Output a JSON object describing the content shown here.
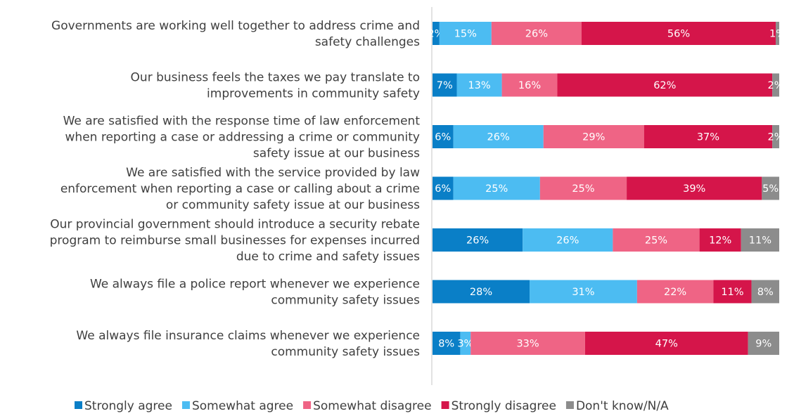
{
  "chart_data": {
    "type": "bar",
    "orientation": "horizontal",
    "stacked": true,
    "normalized": true,
    "title": "",
    "xlabel": "",
    "ylabel": "",
    "xlim": [
      0,
      100
    ],
    "grid": false,
    "legend_position": "bottom",
    "categories": [
      "Governments are working well together to address crime and safety challenges",
      "Our business feels the taxes we pay translate to improvements in community safety",
      "We are satisfied with the response time of law enforcement when reporting a case or addressing a crime or community safety issue at our business",
      "We are satisfied with the service provided by law enforcement when reporting a case or calling about a crime or community safety issue at our business",
      "Our provincial government should introduce a security rebate program to reimburse small businesses for expenses incurred due to crime and safety issues",
      "We always file a police report whenever we experience community safety issues",
      "We always file insurance claims whenever we experience community safety issues"
    ],
    "category_lines": [
      [
        "Governments are working well together to address crime and",
        "safety challenges"
      ],
      [
        "Our business feels the taxes we pay translate to",
        "improvements in community safety"
      ],
      [
        "We are satisfied with the response time of law enforcement",
        "when reporting a case or addressing a crime or community",
        "safety issue at our business"
      ],
      [
        "We are satisfied with the service provided by law",
        "enforcement when reporting a case or calling about a crime",
        "or community safety issue at our business"
      ],
      [
        "Our provincial government should introduce a security rebate",
        "program to reimburse small businesses for expenses incurred",
        "due to crime and safety issues"
      ],
      [
        "We always file a police report whenever we experience",
        "community safety issues"
      ],
      [
        "We always file insurance claims whenever we experience",
        "community safety issues"
      ]
    ],
    "series": [
      {
        "name": "Strongly agree",
        "color": "#0a7fc7",
        "values": [
          2,
          7,
          6,
          6,
          26,
          28,
          8
        ]
      },
      {
        "name": "Somewhat agree",
        "color": "#4cbcf2",
        "values": [
          15,
          13,
          26,
          25,
          26,
          31,
          3
        ]
      },
      {
        "name": "Somewhat disagree",
        "color": "#ef6485",
        "values": [
          26,
          16,
          29,
          25,
          25,
          22,
          33
        ]
      },
      {
        "name": "Strongly disagree",
        "color": "#d5154a",
        "values": [
          56,
          62,
          37,
          39,
          12,
          11,
          47
        ]
      },
      {
        "name": "Don't know/N/A",
        "color": "#8c8c8c",
        "values": [
          1,
          2,
          2,
          5,
          11,
          8,
          9
        ]
      }
    ],
    "value_suffix": "%"
  }
}
